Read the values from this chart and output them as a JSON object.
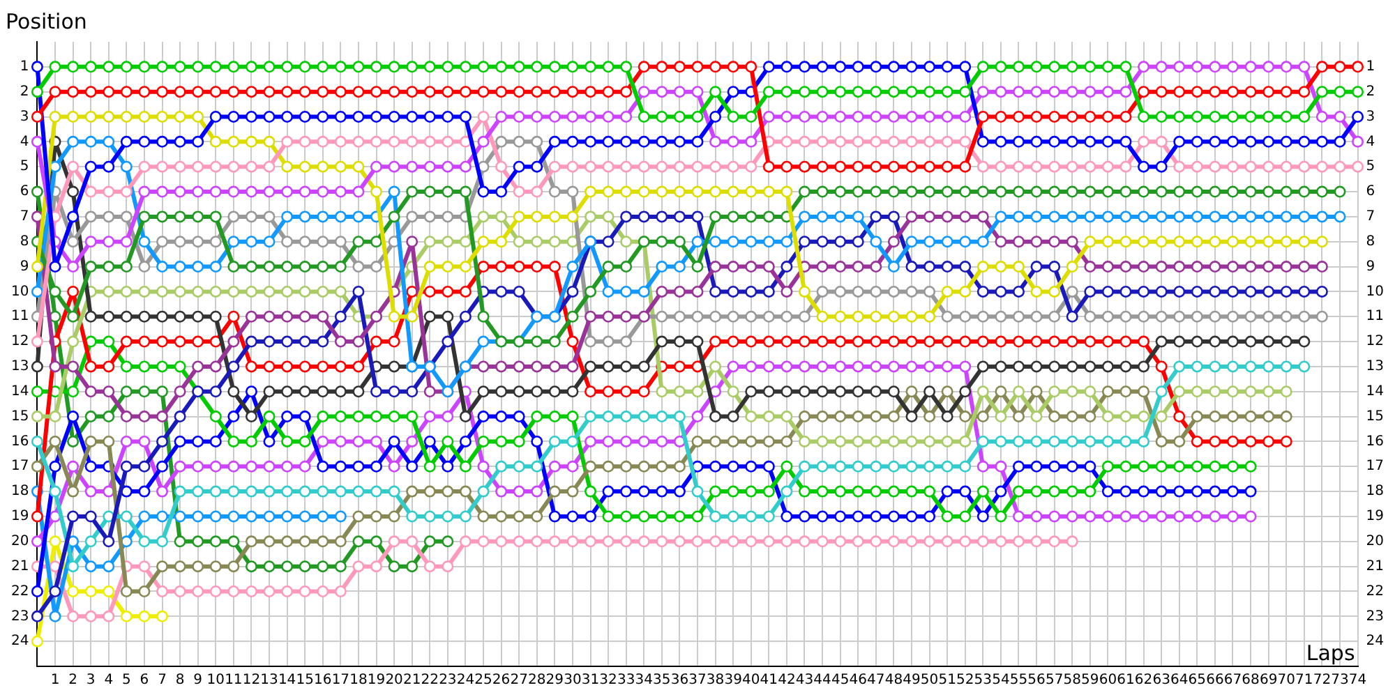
{
  "chart_data": {
    "type": "line",
    "xlabel": "Laps",
    "ylabel": "Position",
    "x": [
      0,
      1,
      2,
      3,
      4,
      5,
      6,
      7,
      8,
      9,
      10,
      11,
      12,
      13,
      14,
      15,
      16,
      17,
      18,
      19,
      20,
      21,
      22,
      23,
      24,
      25,
      26,
      27,
      28,
      29,
      30,
      31,
      32,
      33,
      34,
      35,
      36,
      37,
      38,
      39,
      40,
      41,
      42,
      43,
      44,
      45,
      46,
      47,
      48,
      49,
      50,
      51,
      52,
      53,
      54,
      55,
      56,
      57,
      58,
      59,
      60,
      61,
      62,
      63,
      64,
      65,
      66,
      67,
      68,
      69,
      70,
      71,
      72,
      73,
      74
    ],
    "xlim": [
      0,
      74
    ],
    "xticks": [
      1,
      2,
      3,
      4,
      5,
      6,
      7,
      8,
      9,
      10,
      11,
      12,
      13,
      14,
      15,
      16,
      17,
      18,
      19,
      20,
      21,
      22,
      23,
      24,
      25,
      26,
      27,
      28,
      29,
      30,
      31,
      32,
      33,
      34,
      35,
      36,
      37,
      38,
      39,
      40,
      41,
      42,
      43,
      44,
      45,
      46,
      47,
      48,
      49,
      50,
      51,
      52,
      53,
      54,
      55,
      56,
      57,
      58,
      59,
      60,
      61,
      62,
      63,
      64,
      65,
      66,
      67,
      68,
      69,
      70,
      71,
      72,
      73,
      74
    ],
    "ylim": [
      25,
      0
    ],
    "yticks": [
      1,
      2,
      3,
      4,
      5,
      6,
      7,
      8,
      9,
      10,
      11,
      12,
      13,
      14,
      15,
      16,
      17,
      18,
      19,
      20,
      21,
      22,
      23,
      24
    ],
    "y2lim": [
      25,
      0
    ],
    "y2ticks": [
      1,
      2,
      3,
      4,
      5,
      6,
      7,
      8,
      9,
      10,
      11,
      12,
      13,
      14,
      15,
      16,
      17,
      18,
      19,
      20,
      21,
      22,
      23,
      24
    ],
    "grid": true,
    "legend": false,
    "marker": "circle",
    "line_style": "solid",
    "series": [
      {
        "color": "#00cc00",
        "values": [
          2,
          1,
          1,
          1,
          1,
          1,
          1,
          1,
          1,
          1,
          1,
          1,
          1,
          1,
          1,
          1,
          1,
          1,
          1,
          1,
          1,
          1,
          1,
          1,
          1,
          1,
          1,
          1,
          1,
          1,
          1,
          1,
          1,
          1,
          3,
          3,
          3,
          3,
          2,
          3,
          3,
          2,
          2,
          2,
          2,
          2,
          2,
          2,
          2,
          2,
          2,
          2,
          2,
          1,
          1,
          1,
          1,
          1,
          1,
          1,
          1,
          1,
          3,
          3,
          3,
          3,
          3,
          3,
          3,
          3,
          3,
          3,
          2,
          2,
          2
        ]
      },
      {
        "color": "#ff0000",
        "values": [
          3,
          2,
          2,
          2,
          2,
          2,
          2,
          2,
          2,
          2,
          2,
          2,
          2,
          2,
          2,
          2,
          2,
          2,
          2,
          2,
          2,
          2,
          2,
          2,
          2,
          2,
          2,
          2,
          2,
          2,
          2,
          2,
          2,
          2,
          1,
          1,
          1,
          1,
          1,
          1,
          1,
          5,
          5,
          5,
          5,
          5,
          5,
          5,
          5,
          5,
          5,
          5,
          5,
          3,
          3,
          3,
          3,
          3,
          3,
          3,
          3,
          3,
          2,
          2,
          2,
          2,
          2,
          2,
          2,
          2,
          2,
          2,
          1,
          1,
          1
        ]
      },
      {
        "color": "#0000ff",
        "values": [
          1,
          9,
          7,
          5,
          5,
          4,
          4,
          4,
          4,
          4,
          3,
          3,
          3,
          3,
          3,
          3,
          3,
          3,
          3,
          3,
          3,
          3,
          3,
          3,
          3,
          6,
          6,
          5,
          5,
          4,
          4,
          4,
          4,
          4,
          4,
          4,
          4,
          4,
          3,
          2,
          2,
          1,
          1,
          1,
          1,
          1,
          1,
          1,
          1,
          1,
          1,
          1,
          1,
          4,
          4,
          4,
          4,
          4,
          4,
          4,
          4,
          4,
          5,
          5,
          4,
          4,
          4,
          4,
          4,
          4,
          4,
          4,
          4,
          4,
          3
        ]
      },
      {
        "color": "#cc44ff",
        "values": [
          4,
          8,
          9,
          8,
          8,
          8,
          6,
          6,
          6,
          6,
          6,
          6,
          6,
          6,
          6,
          6,
          6,
          6,
          6,
          5,
          5,
          5,
          5,
          5,
          5,
          4,
          3,
          3,
          3,
          3,
          3,
          3,
          3,
          3,
          2,
          2,
          2,
          2,
          4,
          4,
          4,
          3,
          3,
          3,
          3,
          3,
          3,
          3,
          3,
          3,
          3,
          3,
          3,
          2,
          2,
          2,
          2,
          2,
          2,
          2,
          2,
          2,
          1,
          1,
          1,
          1,
          1,
          1,
          1,
          1,
          1,
          1,
          3,
          3,
          4
        ]
      },
      {
        "color": "#ff99bb",
        "values": [
          12,
          7,
          5,
          6,
          6,
          6,
          5,
          5,
          5,
          5,
          5,
          5,
          5,
          5,
          4,
          4,
          4,
          4,
          4,
          4,
          4,
          4,
          4,
          4,
          4,
          3,
          5,
          6,
          6,
          5,
          5,
          5,
          5,
          5,
          5,
          5,
          5,
          5,
          5,
          5,
          5,
          4,
          4,
          4,
          4,
          4,
          4,
          4,
          4,
          4,
          4,
          4,
          4,
          5,
          5,
          5,
          5,
          5,
          5,
          5,
          5,
          5,
          4,
          4,
          5,
          5,
          5,
          5,
          5,
          5,
          5,
          5,
          5,
          5,
          5
        ]
      },
      {
        "color": "#dddd00",
        "values": [
          9,
          3,
          3,
          3,
          3,
          3,
          3,
          3,
          3,
          3,
          4,
          4,
          4,
          4,
          5,
          5,
          5,
          5,
          5,
          6,
          11,
          11,
          9,
          9,
          9,
          8,
          8,
          7,
          7,
          7,
          7,
          6,
          6,
          6,
          6,
          6,
          6,
          6,
          6,
          6,
          6,
          6,
          6,
          10,
          11,
          11,
          11,
          11,
          11,
          11,
          11,
          10,
          10,
          9,
          9,
          9,
          10,
          10,
          9,
          8,
          8,
          8,
          8,
          8,
          8,
          8,
          8,
          8,
          8,
          8,
          8,
          8,
          8,
          null,
          null
        ]
      },
      {
        "color": "#229922",
        "values": [
          8,
          10,
          11,
          9,
          9,
          9,
          7,
          7,
          7,
          7,
          7,
          9,
          9,
          9,
          9,
          9,
          9,
          9,
          8,
          8,
          7,
          6,
          6,
          6,
          6,
          11,
          12,
          12,
          12,
          12,
          11,
          10,
          9,
          9,
          8,
          8,
          8,
          9,
          7,
          7,
          7,
          7,
          7,
          6,
          6,
          6,
          6,
          6,
          6,
          6,
          6,
          6,
          6,
          6,
          6,
          6,
          6,
          6,
          6,
          6,
          6,
          6,
          6,
          6,
          6,
          6,
          6,
          6,
          6,
          6,
          6,
          6,
          6,
          6,
          null
        ]
      },
      {
        "color": "#1199ff",
        "values": [
          10,
          5,
          4,
          4,
          4,
          5,
          8,
          9,
          9,
          9,
          9,
          8,
          8,
          8,
          7,
          7,
          7,
          7,
          7,
          7,
          6,
          13,
          13,
          14,
          13,
          12,
          12,
          12,
          11,
          11,
          9,
          8,
          10,
          10,
          10,
          9,
          9,
          8,
          8,
          8,
          8,
          8,
          8,
          7,
          7,
          7,
          7,
          8,
          9,
          8,
          8,
          8,
          8,
          8,
          7,
          7,
          7,
          7,
          7,
          7,
          7,
          7,
          7,
          7,
          7,
          7,
          7,
          7,
          7,
          7,
          7,
          7,
          7,
          7,
          null
        ]
      },
      {
        "color": "#993399",
        "values": [
          7,
          13,
          13,
          14,
          14,
          15,
          15,
          15,
          14,
          13,
          13,
          12,
          11,
          11,
          11,
          11,
          11,
          12,
          12,
          11,
          10,
          8,
          14,
          14,
          13,
          13,
          13,
          13,
          13,
          13,
          13,
          11,
          11,
          11,
          11,
          10,
          10,
          10,
          9,
          9,
          9,
          9,
          10,
          9,
          9,
          9,
          9,
          9,
          8,
          7,
          7,
          7,
          7,
          7,
          8,
          8,
          8,
          8,
          8,
          9,
          9,
          9,
          9,
          9,
          9,
          9,
          9,
          9,
          9,
          9,
          9,
          9,
          9,
          null,
          null
        ]
      },
      {
        "color": "#1a1abb",
        "values": [
          23,
          22,
          19,
          19,
          20,
          17,
          17,
          16,
          15,
          14,
          14,
          13,
          12,
          12,
          12,
          12,
          12,
          11,
          10,
          14,
          14,
          14,
          13,
          12,
          11,
          10,
          10,
          10,
          11,
          11,
          10,
          8,
          8,
          7,
          7,
          7,
          7,
          7,
          10,
          10,
          10,
          10,
          9,
          8,
          8,
          8,
          8,
          7,
          7,
          9,
          9,
          9,
          9,
          10,
          10,
          10,
          9,
          9,
          11,
          10,
          10,
          10,
          10,
          10,
          10,
          10,
          10,
          10,
          10,
          10,
          10,
          10,
          10,
          null,
          null
        ]
      },
      {
        "color": "#999999",
        "values": [
          11,
          6,
          8,
          7,
          7,
          7,
          9,
          8,
          8,
          8,
          8,
          7,
          7,
          7,
          8,
          8,
          8,
          8,
          9,
          9,
          8,
          7,
          7,
          7,
          7,
          5,
          4,
          4,
          4,
          6,
          6,
          12,
          12,
          12,
          11,
          11,
          11,
          11,
          11,
          11,
          11,
          11,
          11,
          11,
          10,
          10,
          10,
          10,
          10,
          10,
          10,
          11,
          11,
          11,
          11,
          11,
          11,
          11,
          10,
          11,
          11,
          11,
          11,
          11,
          11,
          11,
          11,
          11,
          11,
          11,
          11,
          11,
          11,
          null,
          null
        ]
      },
      {
        "color": "#333333",
        "values": [
          13,
          4,
          6,
          11,
          11,
          11,
          11,
          11,
          11,
          11,
          11,
          14,
          15,
          14,
          14,
          14,
          14,
          14,
          14,
          13,
          13,
          13,
          11,
          11,
          15,
          14,
          14,
          14,
          14,
          14,
          14,
          13,
          13,
          13,
          13,
          12,
          12,
          12,
          15,
          15,
          14,
          14,
          14,
          14,
          14,
          14,
          14,
          14,
          14,
          15,
          14,
          15,
          14,
          13,
          13,
          13,
          13,
          13,
          13,
          13,
          13,
          13,
          13,
          12,
          12,
          12,
          12,
          12,
          12,
          12,
          12,
          12,
          null,
          null,
          null
        ]
      },
      {
        "color": "#33cccc",
        "values": [
          16,
          18,
          21,
          20,
          19,
          19,
          20,
          20,
          18,
          18,
          18,
          18,
          18,
          18,
          18,
          18,
          18,
          18,
          18,
          18,
          18,
          19,
          19,
          19,
          19,
          18,
          17,
          17,
          17,
          16,
          16,
          15,
          15,
          15,
          15,
          15,
          15,
          18,
          19,
          19,
          19,
          19,
          18,
          17,
          17,
          17,
          17,
          17,
          17,
          17,
          17,
          17,
          17,
          16,
          16,
          16,
          16,
          16,
          16,
          16,
          16,
          16,
          16,
          14,
          13,
          13,
          13,
          13,
          13,
          13,
          13,
          13,
          null,
          null,
          null
        ]
      },
      {
        "color": "#aacc66",
        "values": [
          15,
          15,
          12,
          10,
          10,
          10,
          10,
          10,
          10,
          10,
          10,
          10,
          10,
          10,
          10,
          10,
          10,
          10,
          11,
          11,
          10,
          9,
          8,
          8,
          8,
          7,
          7,
          8,
          8,
          8,
          8,
          7,
          7,
          8,
          8,
          14,
          14,
          14,
          13,
          14,
          15,
          15,
          15,
          16,
          16,
          16,
          16,
          16,
          16,
          16,
          16,
          16,
          16,
          14,
          15,
          14,
          15,
          14,
          14,
          14,
          15,
          15,
          15,
          15,
          14,
          14,
          14,
          14,
          14,
          14,
          14,
          null,
          null,
          null,
          null
        ]
      },
      {
        "color": "#888855",
        "values": [
          17,
          16,
          18,
          16,
          16,
          22,
          22,
          21,
          21,
          21,
          21,
          21,
          20,
          20,
          20,
          20,
          20,
          20,
          19,
          19,
          19,
          18,
          18,
          18,
          18,
          19,
          19,
          19,
          19,
          18,
          18,
          17,
          17,
          17,
          17,
          17,
          17,
          16,
          16,
          16,
          16,
          16,
          16,
          15,
          15,
          15,
          15,
          15,
          15,
          14,
          15,
          14,
          15,
          15,
          14,
          15,
          14,
          15,
          15,
          15,
          14,
          14,
          14,
          16,
          16,
          15,
          15,
          15,
          15,
          15,
          15,
          null,
          null,
          null,
          null
        ]
      },
      {
        "color": "#ff0000",
        "values": [
          19,
          12,
          10,
          13,
          13,
          12,
          12,
          12,
          12,
          12,
          12,
          11,
          13,
          13,
          13,
          13,
          13,
          13,
          13,
          12,
          12,
          10,
          10,
          10,
          10,
          9,
          9,
          9,
          9,
          9,
          12,
          14,
          14,
          14,
          14,
          13,
          13,
          13,
          12,
          12,
          12,
          12,
          12,
          12,
          12,
          12,
          12,
          12,
          12,
          12,
          12,
          12,
          12,
          12,
          12,
          12,
          12,
          12,
          12,
          12,
          12,
          12,
          12,
          13,
          15,
          16,
          16,
          16,
          16,
          16,
          16,
          null,
          null,
          null,
          null
        ]
      },
      {
        "color": "#00cc00",
        "values": [
          14,
          14,
          14,
          12,
          12,
          13,
          13,
          13,
          13,
          14,
          15,
          16,
          16,
          15,
          16,
          16,
          15,
          15,
          15,
          15,
          15,
          15,
          17,
          16,
          17,
          16,
          16,
          16,
          15,
          15,
          15,
          18,
          19,
          19,
          19,
          19,
          19,
          19,
          18,
          18,
          18,
          18,
          17,
          18,
          18,
          18,
          18,
          18,
          18,
          18,
          18,
          19,
          19,
          18,
          19,
          18,
          18,
          18,
          18,
          18,
          17,
          17,
          17,
          17,
          17,
          17,
          17,
          17,
          17,
          null,
          null,
          null,
          null,
          null,
          null
        ]
      },
      {
        "color": "#0000ff",
        "values": [
          22,
          17,
          15,
          17,
          17,
          18,
          18,
          17,
          16,
          16,
          16,
          15,
          14,
          16,
          15,
          15,
          17,
          17,
          17,
          17,
          16,
          17,
          16,
          17,
          16,
          15,
          15,
          15,
          16,
          19,
          19,
          19,
          18,
          18,
          18,
          18,
          18,
          17,
          17,
          17,
          17,
          17,
          19,
          19,
          19,
          19,
          19,
          19,
          19,
          19,
          19,
          18,
          18,
          19,
          18,
          17,
          17,
          17,
          17,
          17,
          18,
          18,
          18,
          18,
          18,
          18,
          18,
          18,
          18,
          null,
          null,
          null,
          null,
          null,
          null
        ]
      },
      {
        "color": "#cc44ff",
        "values": [
          20,
          19,
          17,
          18,
          18,
          16,
          16,
          18,
          17,
          17,
          17,
          17,
          17,
          17,
          17,
          17,
          16,
          16,
          16,
          16,
          17,
          16,
          15,
          15,
          14,
          17,
          18,
          18,
          18,
          17,
          17,
          16,
          16,
          16,
          16,
          16,
          16,
          15,
          14,
          13,
          13,
          13,
          13,
          13,
          13,
          13,
          13,
          13,
          13,
          13,
          13,
          13,
          13,
          17,
          17,
          19,
          19,
          19,
          19,
          19,
          19,
          19,
          19,
          19,
          19,
          19,
          19,
          19,
          19,
          null,
          null,
          null,
          null,
          null,
          null
        ]
      },
      {
        "color": "#1199ff",
        "x": [
          0,
          1,
          2,
          3,
          4,
          5,
          6,
          7,
          8,
          9,
          10,
          11,
          12,
          13,
          14,
          15,
          16,
          17
        ],
        "values": [
          18,
          23,
          20,
          21,
          21,
          20,
          19,
          19,
          19,
          19,
          19,
          19,
          19,
          19,
          19,
          19,
          19,
          19
        ]
      },
      {
        "color": "#ff99bb",
        "values": [
          21,
          21,
          23,
          23,
          23,
          21,
          21,
          22,
          22,
          22,
          22,
          22,
          22,
          22,
          22,
          22,
          22,
          22,
          21,
          21,
          20,
          20,
          21,
          21,
          20,
          20,
          20,
          20,
          20,
          20,
          20,
          20,
          20,
          20,
          20,
          20,
          20,
          20,
          20,
          20,
          20,
          20,
          20,
          20,
          20,
          20,
          20,
          20,
          20,
          20,
          20,
          20,
          20,
          20,
          20,
          20,
          20,
          20,
          20,
          null,
          null,
          null,
          null,
          null,
          null,
          null,
          null,
          null,
          null,
          null,
          null,
          null,
          null,
          null,
          null
        ]
      },
      {
        "color": "#229922",
        "x": [
          0,
          1,
          2,
          3,
          4,
          5,
          6,
          7,
          8,
          9,
          10,
          11,
          12,
          13,
          14,
          15,
          16,
          17,
          18,
          19,
          20,
          21,
          22,
          23
        ],
        "values": [
          6,
          11,
          16,
          15,
          15,
          14,
          14,
          14,
          20,
          20,
          20,
          20,
          21,
          21,
          21,
          21,
          21,
          21,
          20,
          20,
          21,
          21,
          20,
          20
        ]
      },
      {
        "color": "#eeee00",
        "x": [
          0,
          1,
          2,
          3,
          4,
          5,
          6,
          7
        ],
        "values": [
          24,
          20,
          22,
          22,
          22,
          23,
          23,
          23
        ]
      }
    ]
  }
}
